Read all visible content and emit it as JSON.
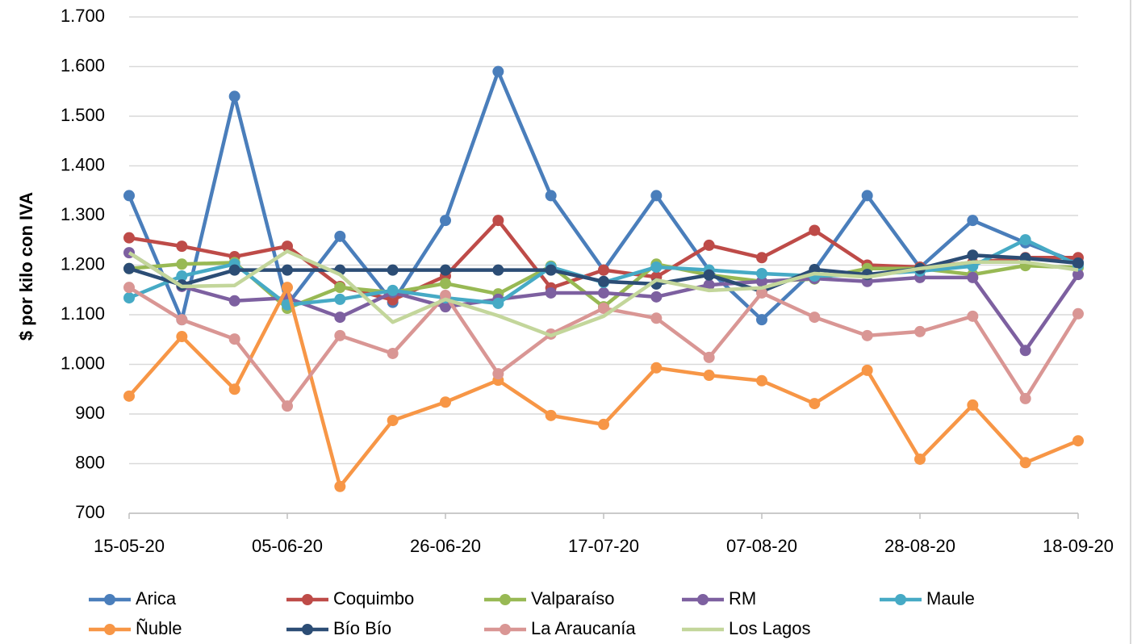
{
  "chart_data": {
    "type": "line",
    "y_label": "$ por kilo con IVA",
    "categories": [
      "15-05-20",
      null,
      null,
      "05-06-20",
      null,
      null,
      "26-06-20",
      null,
      null,
      "17-07-20",
      null,
      null,
      "07-08-20",
      null,
      null,
      "28-08-20",
      null,
      null,
      "18-09-20"
    ],
    "ylim": [
      700,
      1700
    ],
    "yticks": [
      700,
      800,
      900,
      {
        "value": 1000,
        "label": "1.000"
      },
      {
        "value": 1100,
        "label": "1.100"
      },
      {
        "value": 1200,
        "label": "1.200"
      },
      {
        "value": 1300,
        "label": "1.300"
      },
      {
        "value": 1400,
        "label": "1.400"
      },
      {
        "value": 1500,
        "label": "1.500"
      },
      {
        "value": 1600,
        "label": "1.600"
      },
      {
        "value": 1700,
        "label": "1.700"
      }
    ],
    "grid": true,
    "legend": "bottom",
    "series": [
      {
        "name": "Arica",
        "color": "#4a7ebb",
        "values": [
          1340,
          1090,
          1540,
          1120,
          1258,
          1125,
          1290,
          1590,
          1340,
          1190,
          1340,
          1190,
          1090,
          1190,
          1340,
          1195,
          1290,
          1245,
          1205
        ]
      },
      {
        "name": "Coquimbo",
        "color": "#be4b48",
        "values": [
          1255,
          1238,
          1217,
          1238,
          1157,
          1130,
          1178,
          1290,
          1154,
          1190,
          1176,
          1240,
          1215,
          1270,
          1200,
          1196,
          1205,
          1215,
          1215
        ]
      },
      {
        "name": "Valparaíso",
        "color": "#98b954",
        "values": [
          1193,
          1202,
          1205,
          1113,
          1155,
          1145,
          1163,
          1142,
          1198,
          1116,
          1202,
          1180,
          1167,
          1172,
          1193,
          1193,
          1181,
          1199,
          1195
        ]
      },
      {
        "name": "RM",
        "color": "#7d60a0",
        "values": [
          1225,
          1157,
          1128,
          1134,
          1095,
          1145,
          1116,
          1131,
          1144,
          1144,
          1136,
          1160,
          1167,
          1173,
          1167,
          1175,
          1175,
          1028,
          1181
        ]
      },
      {
        "name": "Maule",
        "color": "#46aac5",
        "values": [
          1134,
          1178,
          1202,
          1120,
          1131,
          1149,
          1134,
          1123,
          1196,
          1165,
          1196,
          1190,
          1183,
          1178,
          1181,
          1188,
          1198,
          1251,
          1200
        ]
      },
      {
        "name": "Ñuble",
        "color": "#f79646",
        "values": [
          936,
          1056,
          950,
          1155,
          754,
          887,
          924,
          968,
          897,
          879,
          993,
          978,
          967,
          921,
          988,
          809,
          918,
          802,
          846
        ]
      },
      {
        "name": "Bío Bío",
        "color": "#2c4d75",
        "values": [
          1193,
          1160,
          1190,
          1190,
          1190,
          1190,
          1190,
          1190,
          1190,
          1167,
          1162,
          1180,
          1147,
          1191,
          1181,
          1193,
          1220,
          1214,
          1204
        ]
      },
      {
        "name": "La Araucanía",
        "color": "#d99694",
        "values": [
          1155,
          1090,
          1051,
          916,
          1058,
          1022,
          1139,
          981,
          1061,
          1113,
          1093,
          1014,
          1144,
          1095,
          1058,
          1066,
          1097,
          931,
          1102
        ]
      },
      {
        "name": "Los Lagos",
        "color": "#c3d69b",
        "marker": false,
        "values": [
          1225,
          1157,
          1159,
          1228,
          1181,
          1085,
          1131,
          1098,
          1058,
          1097,
          1170,
          1149,
          1154,
          1183,
          1176,
          1193,
          1206,
          1206,
          1190
        ]
      }
    ]
  }
}
